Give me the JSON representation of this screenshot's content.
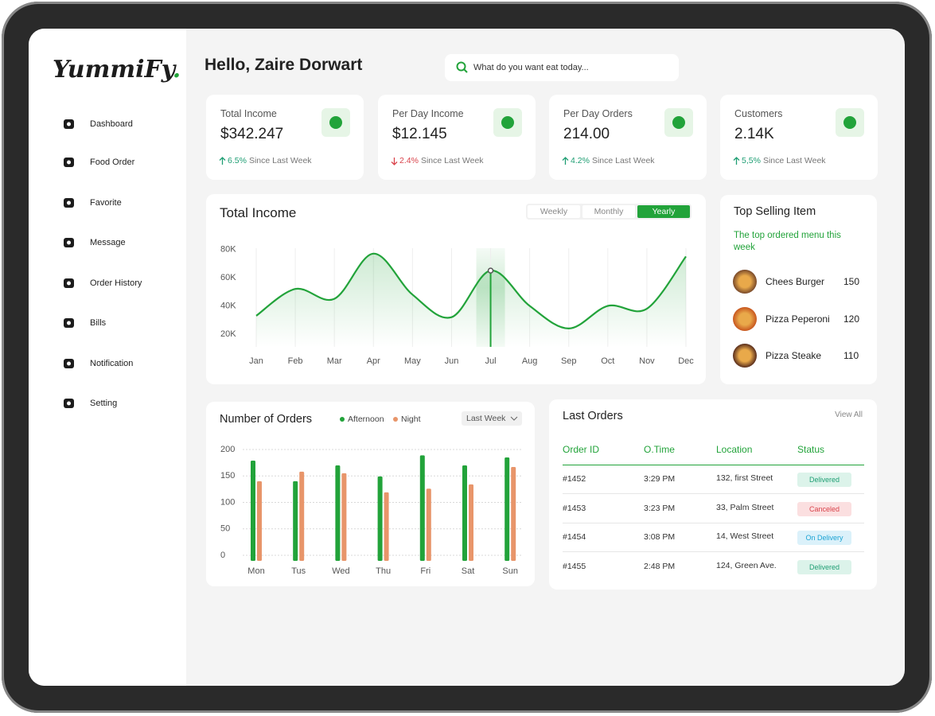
{
  "brand": {
    "name": "YummiFy",
    "dot": "."
  },
  "nav": [
    "Dashboard",
    "Food Order",
    "Favorite",
    "Message",
    "Order History",
    "Bills",
    "Notification",
    "Setting"
  ],
  "greeting": "Hello, Zaire Dorwart",
  "search_placeholder": "What do you want eat today...",
  "stats": [
    {
      "label": "Total Income",
      "value": "$342.247",
      "change": "6.5%",
      "since": "Since Last Week",
      "trend": "up"
    },
    {
      "label": "Per Day Income",
      "value": "$12.145",
      "change": "2.4%",
      "since": "Since Last Week",
      "trend": "down"
    },
    {
      "label": "Per Day Orders",
      "value": "214.00",
      "change": "4.2%",
      "since": "Since Last Week",
      "trend": "up"
    },
    {
      "label": "Customers",
      "value": "2.14K",
      "change": "5,5%",
      "since": "Since Last Week",
      "trend": "up"
    }
  ],
  "income_tabs": [
    "Weekly",
    "Monthly",
    "Yearly"
  ],
  "orders_filter": "Last Week",
  "chart_data": [
    {
      "type": "line",
      "title": "Total Income",
      "categories": [
        "Jan",
        "Feb",
        "Mar",
        "Apr",
        "May",
        "Jun",
        "Jul",
        "Aug",
        "Sep",
        "Oct",
        "Nov",
        "Dec"
      ],
      "values": [
        33000,
        52000,
        45000,
        77000,
        48000,
        32000,
        65000,
        40000,
        24000,
        40000,
        38000,
        75000
      ],
      "color": "#22a33a",
      "ylim": [
        10000,
        88000
      ],
      "yticks": [
        {
          "value": 20000,
          "label": "20K"
        },
        {
          "value": 40000,
          "label": "40K"
        },
        {
          "value": 60000,
          "label": "60K"
        },
        {
          "value": 80000,
          "label": "80K"
        }
      ],
      "grid": true
    },
    {
      "type": "bar",
      "title": "Number of Orders",
      "categories": [
        "Mon",
        "Tus",
        "Wed",
        "Thu",
        "Fri",
        "Sat",
        "Sun"
      ],
      "series": [
        {
          "name": "Afternoon",
          "color": "#22a33a",
          "values": [
            179,
            140,
            170,
            149,
            189,
            170,
            185
          ]
        },
        {
          "name": "Night",
          "color": "#e8956a",
          "values": [
            140,
            158,
            155,
            119,
            126,
            134,
            167
          ]
        }
      ],
      "ylim": [
        0,
        200
      ],
      "yticks": [
        0,
        50,
        100,
        150,
        200
      ],
      "grid": true
    }
  ],
  "top_selling": {
    "title": "Top Selling Item",
    "subtitle": "The top ordered menu this week",
    "items": [
      {
        "name": "Chees Burger",
        "count": "150"
      },
      {
        "name": "Pizza Peperoni",
        "count": "120"
      },
      {
        "name": "Pizza Steake",
        "count": "110"
      }
    ]
  },
  "last_orders": {
    "title": "Last Orders",
    "view_all": "View All",
    "columns": [
      "Order ID",
      "O.Time",
      "Location",
      "Status"
    ],
    "rows": [
      {
        "id": "#1452",
        "time": "3:29 PM",
        "location": "132, first Street",
        "status": "Delivered",
        "status_color": "#1e9e73",
        "status_bg": "#dcf3ea"
      },
      {
        "id": "#1453",
        "time": "3:23 PM",
        "location": "33, Palm Street",
        "status": "Canceled",
        "status_color": "#d9434b",
        "status_bg": "#fbdfe0"
      },
      {
        "id": "#1454",
        "time": "3:08 PM",
        "location": "14, West Street",
        "status": "On Delivery",
        "status_color": "#1aa3d4",
        "status_bg": "#dbf1fa"
      },
      {
        "id": "#1455",
        "time": "2:48 PM",
        "location": "124, Green Ave.",
        "status": "Delivered",
        "status_color": "#1e9e73",
        "status_bg": "#dcf3ea"
      }
    ]
  }
}
